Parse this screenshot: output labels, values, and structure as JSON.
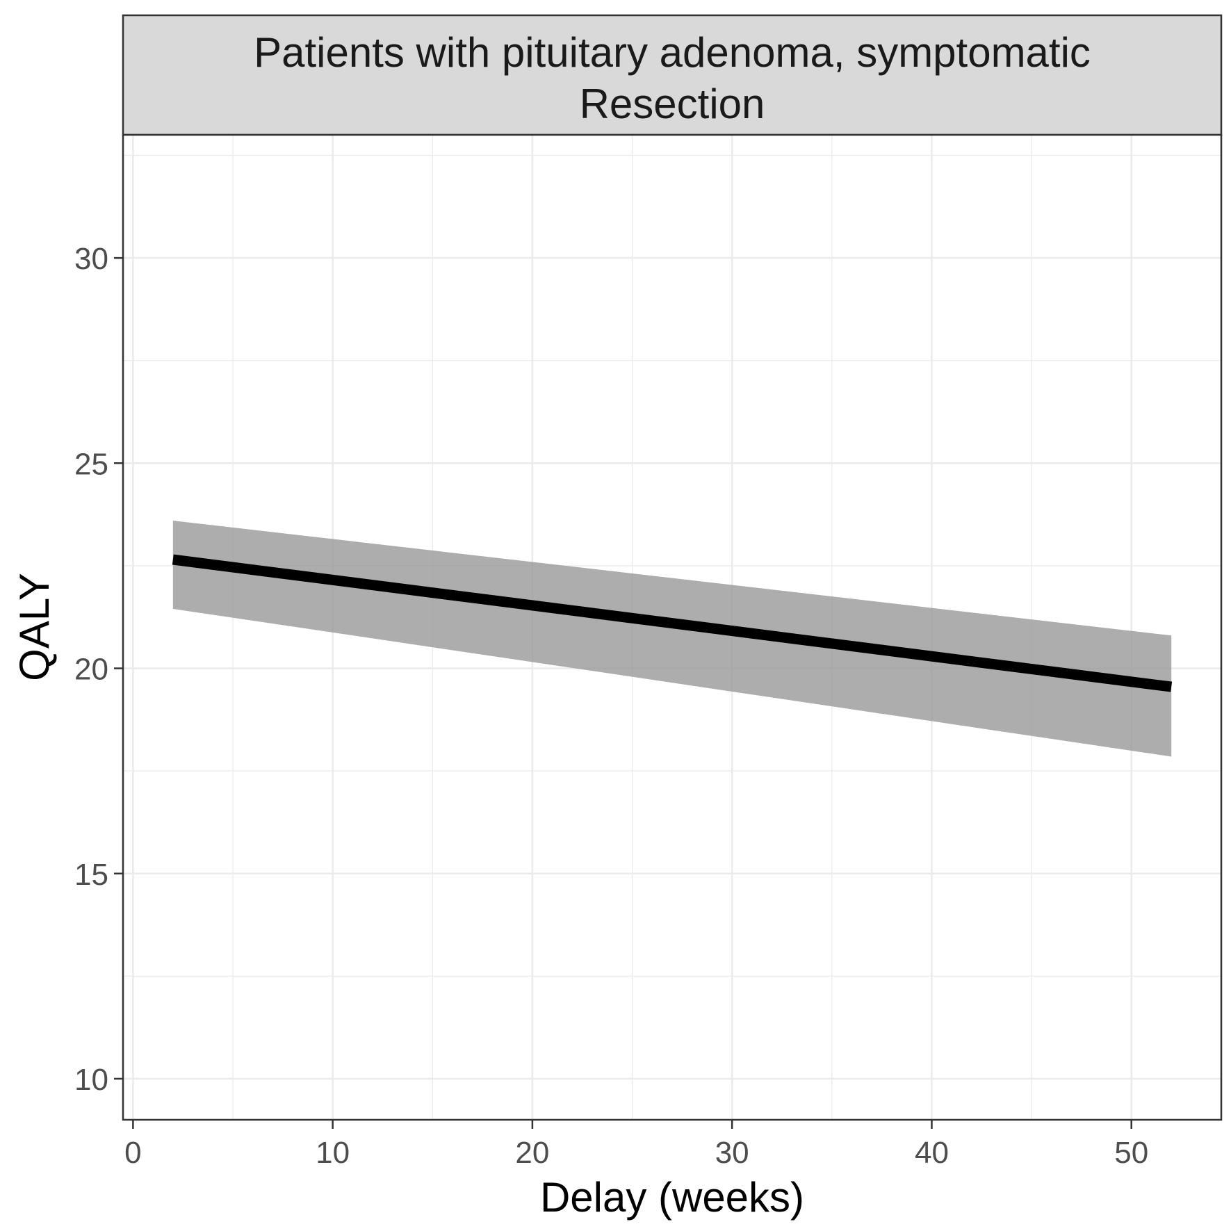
{
  "chart_data": {
    "type": "line",
    "facet": {
      "line1": "Patients with pituitary adenoma, symptomatic",
      "line2": "Resection"
    },
    "xlabel": "Delay (weeks)",
    "ylabel": "QALY",
    "xlim": [
      -0.5,
      54.5
    ],
    "ylim": [
      9.0,
      33.0
    ],
    "x_ticks": [
      0,
      10,
      20,
      30,
      40,
      50
    ],
    "y_ticks": [
      10,
      15,
      20,
      25,
      30
    ],
    "grid": true,
    "series": [
      {
        "x": [
          2,
          52
        ],
        "y": [
          22.65,
          19.55
        ],
        "lower": [
          21.45,
          17.85
        ],
        "upper": [
          23.6,
          20.8
        ]
      }
    ],
    "colors": {
      "line": "#000000",
      "ribbon": "#999999",
      "strip_fill": "#d9d9d9",
      "grid": "#ebebeb",
      "border": "#333333"
    }
  }
}
